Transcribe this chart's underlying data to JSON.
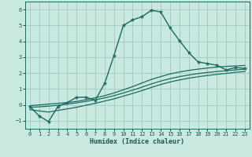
{
  "xlabel": "Humidex (Indice chaleur)",
  "bg_color": "#c8e8e0",
  "grid_color": "#a8ccc8",
  "line_color": "#1a6b60",
  "xlim": [
    -0.5,
    23.5
  ],
  "ylim": [
    -1.5,
    6.5
  ],
  "yticks": [
    -1,
    0,
    1,
    2,
    3,
    4,
    5,
    6
  ],
  "xticks": [
    0,
    1,
    2,
    3,
    4,
    5,
    6,
    7,
    8,
    9,
    10,
    11,
    12,
    13,
    14,
    15,
    16,
    17,
    18,
    19,
    20,
    21,
    22,
    23
  ],
  "main_x": [
    0,
    1,
    2,
    3,
    4,
    5,
    6,
    7,
    8,
    9,
    10,
    11,
    12,
    13,
    14,
    15,
    16,
    17,
    18,
    19,
    20,
    21,
    22,
    23
  ],
  "main_y": [
    -0.1,
    -0.7,
    -1.05,
    -0.1,
    0.15,
    0.48,
    0.48,
    0.3,
    1.35,
    3.1,
    5.0,
    5.35,
    5.55,
    5.95,
    5.85,
    4.85,
    4.05,
    3.3,
    2.7,
    2.6,
    2.5,
    2.2,
    2.35,
    2.3
  ],
  "smooth_top_x": [
    0,
    1,
    2,
    3,
    4,
    5,
    6,
    7,
    8,
    9,
    10,
    11,
    12,
    13,
    14,
    15,
    16,
    17,
    18,
    19,
    20,
    21,
    22,
    23
  ],
  "smooth_top_y": [
    -0.05,
    0.0,
    0.05,
    0.1,
    0.15,
    0.22,
    0.32,
    0.45,
    0.58,
    0.75,
    0.95,
    1.15,
    1.38,
    1.6,
    1.78,
    1.95,
    2.07,
    2.17,
    2.25,
    2.32,
    2.38,
    2.42,
    2.45,
    2.48
  ],
  "smooth_mid_x": [
    0,
    1,
    2,
    3,
    4,
    5,
    6,
    7,
    8,
    9,
    10,
    11,
    12,
    13,
    14,
    15,
    16,
    17,
    18,
    19,
    20,
    21,
    22,
    23
  ],
  "smooth_mid_y": [
    -0.15,
    -0.12,
    -0.08,
    -0.02,
    0.05,
    0.13,
    0.22,
    0.32,
    0.44,
    0.58,
    0.75,
    0.93,
    1.12,
    1.32,
    1.5,
    1.65,
    1.78,
    1.88,
    1.97,
    2.04,
    2.1,
    2.15,
    2.2,
    2.25
  ],
  "smooth_bot_x": [
    0,
    1,
    2,
    3,
    4,
    5,
    6,
    7,
    8,
    9,
    10,
    11,
    12,
    13,
    14,
    15,
    16,
    17,
    18,
    19,
    20,
    21,
    22,
    23
  ],
  "smooth_bot_y": [
    -0.3,
    -0.38,
    -0.45,
    -0.35,
    -0.25,
    -0.15,
    -0.02,
    0.1,
    0.24,
    0.38,
    0.55,
    0.72,
    0.9,
    1.1,
    1.28,
    1.44,
    1.57,
    1.68,
    1.77,
    1.85,
    1.92,
    1.98,
    2.05,
    2.1
  ]
}
